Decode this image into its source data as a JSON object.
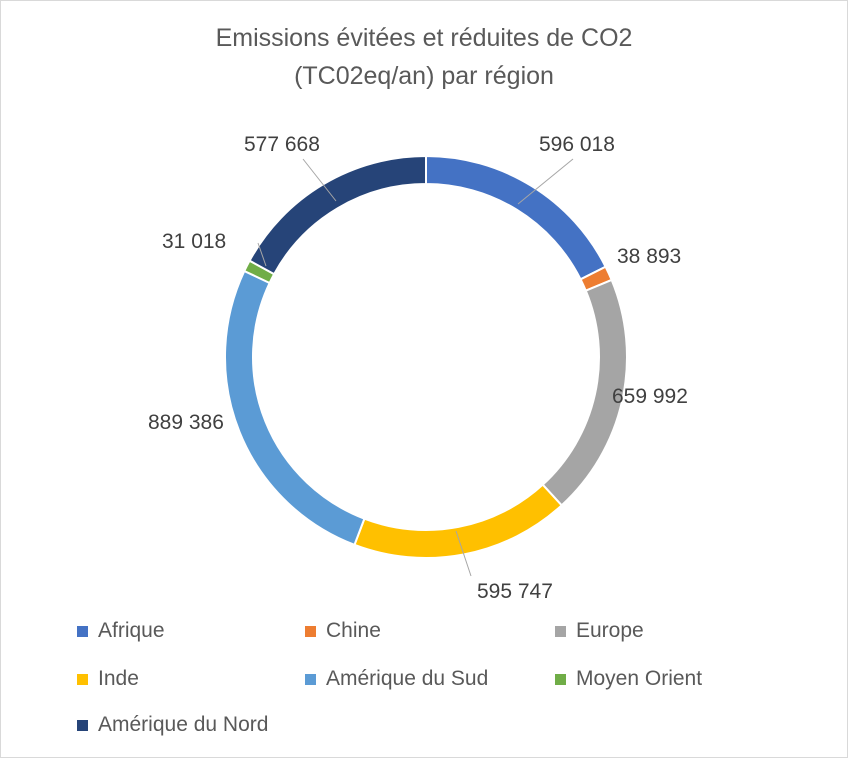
{
  "chart_data": {
    "type": "pie",
    "subtype": "doughnut",
    "title_lines": [
      "Emissions évitées et réduites de CO2",
      "(TC02eq/an) par région"
    ],
    "categories": [
      "Afrique",
      "Chine",
      "Europe",
      "Inde",
      "Amérique du Sud",
      "Moyen Orient",
      "Amérique du Nord"
    ],
    "values": [
      596018,
      38893,
      659992,
      595747,
      889386,
      31018,
      577668
    ],
    "data_labels": [
      "596 018",
      "38 893",
      "659 992",
      "595 747",
      "889 386",
      "31 018",
      "577 668"
    ],
    "colors": [
      "#4472C4",
      "#ED7D31",
      "#A5A5A5",
      "#FFC000",
      "#5B9BD5",
      "#70AD47",
      "#264478"
    ],
    "legend_position": "bottom"
  }
}
